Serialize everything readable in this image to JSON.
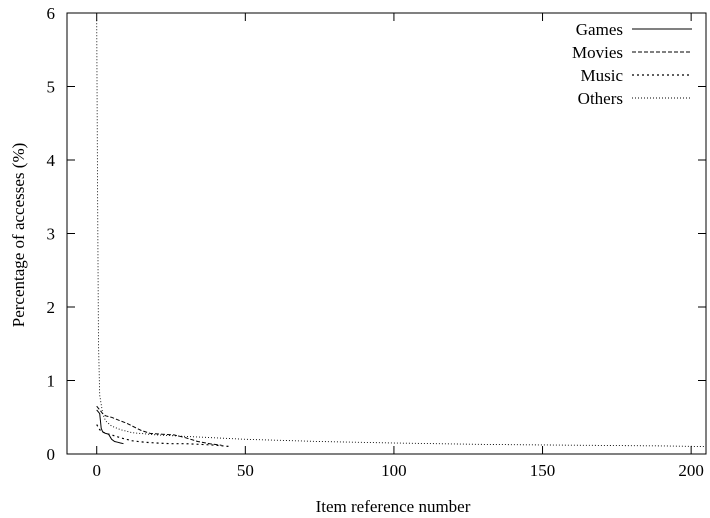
{
  "chart_data": {
    "type": "line",
    "xlabel": "Item reference number",
    "ylabel": "Percentage of accesses (%)",
    "xlim": [
      -10,
      205
    ],
    "ylim": [
      0,
      6
    ],
    "xticks": [
      0,
      50,
      100,
      150,
      200
    ],
    "yticks": [
      0,
      1,
      2,
      3,
      4,
      5,
      6
    ],
    "grid": false,
    "legend_position": "top-right",
    "series": [
      {
        "name": "Games",
        "dash": "solid",
        "x": [
          0,
          1,
          1.5,
          2,
          3,
          4,
          5,
          6,
          7,
          8,
          9
        ],
        "y": [
          0.6,
          0.55,
          0.35,
          0.3,
          0.28,
          0.27,
          0.2,
          0.17,
          0.16,
          0.15,
          0.14
        ]
      },
      {
        "name": "Movies",
        "dash": "dashed",
        "x": [
          0,
          1,
          2,
          3,
          5,
          8,
          10,
          12,
          15,
          18,
          22,
          26,
          30,
          34,
          38,
          42
        ],
        "y": [
          0.65,
          0.6,
          0.55,
          0.52,
          0.5,
          0.45,
          0.42,
          0.38,
          0.32,
          0.28,
          0.27,
          0.26,
          0.22,
          0.17,
          0.14,
          0.12
        ]
      },
      {
        "name": "Music",
        "dash": "dotted",
        "x": [
          0,
          1,
          2,
          3,
          5,
          8,
          12,
          16,
          20,
          25,
          30,
          35,
          40,
          45
        ],
        "y": [
          0.4,
          0.33,
          0.3,
          0.28,
          0.26,
          0.22,
          0.18,
          0.16,
          0.15,
          0.14,
          0.14,
          0.13,
          0.12,
          0.1
        ]
      },
      {
        "name": "Others",
        "dash": "fine-dotted",
        "x": [
          0,
          0.3,
          0.6,
          1,
          2,
          3,
          5,
          8,
          12,
          20,
          30,
          50,
          75,
          100,
          130,
          160,
          190,
          205
        ],
        "y": [
          5.9,
          3.5,
          1.5,
          0.8,
          0.55,
          0.45,
          0.38,
          0.33,
          0.29,
          0.26,
          0.24,
          0.2,
          0.17,
          0.15,
          0.13,
          0.12,
          0.11,
          0.1
        ]
      }
    ]
  }
}
